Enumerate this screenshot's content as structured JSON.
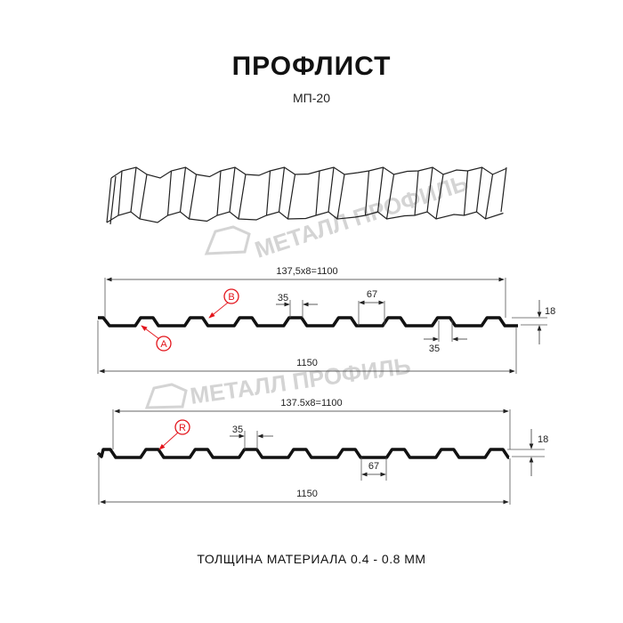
{
  "header": {
    "title": "ПРОФЛИСТ",
    "subtitle": "МП-20"
  },
  "watermark": "МЕТАЛЛ ПРОФИЛЬ",
  "profile_top": {
    "pitch_label": "137,5x8=1100",
    "width_label": "1150",
    "top_width": "35",
    "bottom_width_top": "67",
    "bottom_width": "35",
    "height": "18",
    "marker_b": "B",
    "marker_a": "A"
  },
  "profile_bottom": {
    "pitch_label": "137.5x8=1100",
    "width_label": "1150",
    "top_width": "35",
    "bottom_width": "67",
    "height": "18",
    "marker_r": "R"
  },
  "footer": {
    "thickness": "ТОЛЩИНА МАТЕРИАЛА 0.4 - 0.8 ММ"
  },
  "colors": {
    "profile": "#111111",
    "marker": "#e3141b",
    "watermark": "#d4d4d4"
  }
}
